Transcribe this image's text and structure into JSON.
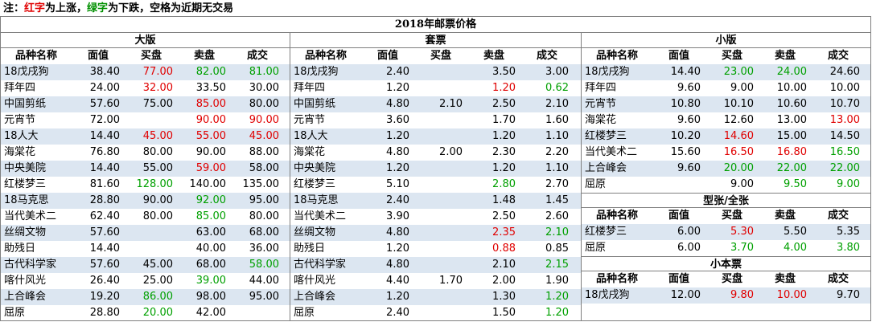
{
  "note": {
    "prefix": "注：",
    "red_text": "红字",
    "mid": "为上涨，",
    "green_text": "绿字",
    "suffix": "为下跌，空格为近期无交易"
  },
  "title": "2018年邮票价格",
  "headers": [
    "品种名称",
    "面值",
    "买盘",
    "卖盘",
    "成交"
  ],
  "sections": {
    "daban": {
      "title": "大版",
      "rows": [
        [
          [
            "18戊戌狗",
            ""
          ],
          [
            "38.40",
            ""
          ],
          [
            "77.00",
            "red"
          ],
          [
            "82.00",
            "green"
          ],
          [
            "81.00",
            "green"
          ]
        ],
        [
          [
            "拜年四",
            ""
          ],
          [
            "24.00",
            ""
          ],
          [
            "32.00",
            "red"
          ],
          [
            "33.50",
            ""
          ],
          [
            "30.00",
            ""
          ]
        ],
        [
          [
            "中国剪纸",
            ""
          ],
          [
            "57.60",
            ""
          ],
          [
            "75.00",
            ""
          ],
          [
            "85.00",
            "red"
          ],
          [
            "80.00",
            ""
          ]
        ],
        [
          [
            "元宵节",
            ""
          ],
          [
            "72.00",
            ""
          ],
          [
            "",
            ""
          ],
          [
            "90.00",
            "red"
          ],
          [
            "90.00",
            "red"
          ]
        ],
        [
          [
            "18人大",
            ""
          ],
          [
            "14.40",
            ""
          ],
          [
            "45.00",
            "red"
          ],
          [
            "55.00",
            "red"
          ],
          [
            "45.00",
            "red"
          ]
        ],
        [
          [
            "海棠花",
            ""
          ],
          [
            "76.80",
            ""
          ],
          [
            "80.00",
            ""
          ],
          [
            "90.00",
            ""
          ],
          [
            "88.00",
            ""
          ]
        ],
        [
          [
            "中央美院",
            ""
          ],
          [
            "14.40",
            ""
          ],
          [
            "55.00",
            ""
          ],
          [
            "59.00",
            "red"
          ],
          [
            "58.00",
            ""
          ]
        ],
        [
          [
            "红楼梦三",
            ""
          ],
          [
            "81.60",
            ""
          ],
          [
            "128.00",
            "green"
          ],
          [
            "140.00",
            ""
          ],
          [
            "135.00",
            ""
          ]
        ],
        [
          [
            "18马克思",
            ""
          ],
          [
            "28.80",
            ""
          ],
          [
            "90.00",
            ""
          ],
          [
            "92.00",
            "green"
          ],
          [
            "95.00",
            ""
          ]
        ],
        [
          [
            "当代美术二",
            ""
          ],
          [
            "62.40",
            ""
          ],
          [
            "80.00",
            ""
          ],
          [
            "85.00",
            "green"
          ],
          [
            "80.00",
            ""
          ]
        ],
        [
          [
            "丝绸文物",
            ""
          ],
          [
            "57.60",
            ""
          ],
          [
            "",
            ""
          ],
          [
            "63.00",
            ""
          ],
          [
            "68.00",
            ""
          ]
        ],
        [
          [
            "助残日",
            ""
          ],
          [
            "14.40",
            ""
          ],
          [
            "",
            ""
          ],
          [
            "40.00",
            ""
          ],
          [
            "36.00",
            ""
          ]
        ],
        [
          [
            "古代科学家",
            ""
          ],
          [
            "57.60",
            ""
          ],
          [
            "45.00",
            ""
          ],
          [
            "68.00",
            ""
          ],
          [
            "58.00",
            "green"
          ]
        ],
        [
          [
            "喀什风光",
            ""
          ],
          [
            "26.40",
            ""
          ],
          [
            "25.00",
            ""
          ],
          [
            "39.00",
            "green"
          ],
          [
            "44.00",
            ""
          ]
        ],
        [
          [
            "上合峰会",
            ""
          ],
          [
            "19.20",
            ""
          ],
          [
            "86.00",
            "green"
          ],
          [
            "98.00",
            ""
          ],
          [
            "95.00",
            ""
          ]
        ],
        [
          [
            "屈原",
            ""
          ],
          [
            "28.80",
            ""
          ],
          [
            "20.00",
            "green"
          ],
          [
            "42.00",
            ""
          ],
          [
            "",
            ""
          ]
        ]
      ]
    },
    "taopiao": {
      "title": "套票",
      "rows": [
        [
          [
            "18戊戌狗",
            ""
          ],
          [
            "2.40",
            ""
          ],
          [
            "",
            ""
          ],
          [
            "3.50",
            ""
          ],
          [
            "3.00",
            ""
          ]
        ],
        [
          [
            "拜年四",
            ""
          ],
          [
            "1.20",
            ""
          ],
          [
            "",
            ""
          ],
          [
            "1.20",
            "red"
          ],
          [
            "0.62",
            "green"
          ]
        ],
        [
          [
            "中国剪纸",
            ""
          ],
          [
            "4.80",
            ""
          ],
          [
            "2.10",
            ""
          ],
          [
            "2.50",
            ""
          ],
          [
            "2.10",
            ""
          ]
        ],
        [
          [
            "元宵节",
            ""
          ],
          [
            "3.60",
            ""
          ],
          [
            "",
            ""
          ],
          [
            "1.70",
            ""
          ],
          [
            "1.60",
            ""
          ]
        ],
        [
          [
            "18人大",
            ""
          ],
          [
            "1.20",
            ""
          ],
          [
            "",
            ""
          ],
          [
            "1.20",
            ""
          ],
          [
            "1.10",
            ""
          ]
        ],
        [
          [
            "海棠花",
            ""
          ],
          [
            "4.80",
            ""
          ],
          [
            "2.00",
            ""
          ],
          [
            "2.30",
            ""
          ],
          [
            "2.20",
            ""
          ]
        ],
        [
          [
            "中央美院",
            ""
          ],
          [
            "1.20",
            ""
          ],
          [
            "",
            ""
          ],
          [
            "1.20",
            ""
          ],
          [
            "1.10",
            ""
          ]
        ],
        [
          [
            "红楼梦三",
            ""
          ],
          [
            "5.10",
            ""
          ],
          [
            "",
            ""
          ],
          [
            "2.80",
            "green"
          ],
          [
            "2.70",
            ""
          ]
        ],
        [
          [
            "18马克思",
            ""
          ],
          [
            "2.40",
            ""
          ],
          [
            "",
            ""
          ],
          [
            "1.48",
            ""
          ],
          [
            "1.45",
            ""
          ]
        ],
        [
          [
            "当代美术二",
            ""
          ],
          [
            "3.90",
            ""
          ],
          [
            "",
            ""
          ],
          [
            "2.50",
            ""
          ],
          [
            "2.60",
            ""
          ]
        ],
        [
          [
            "丝绸文物",
            ""
          ],
          [
            "4.80",
            ""
          ],
          [
            "",
            ""
          ],
          [
            "2.35",
            "red"
          ],
          [
            "2.10",
            "green"
          ]
        ],
        [
          [
            "助残日",
            ""
          ],
          [
            "1.20",
            ""
          ],
          [
            "",
            ""
          ],
          [
            "0.88",
            "red"
          ],
          [
            "0.85",
            ""
          ]
        ],
        [
          [
            "古代科学家",
            ""
          ],
          [
            "4.80",
            ""
          ],
          [
            "",
            ""
          ],
          [
            "2.10",
            ""
          ],
          [
            "2.15",
            "green"
          ]
        ],
        [
          [
            "喀什风光",
            ""
          ],
          [
            "4.40",
            ""
          ],
          [
            "1.70",
            ""
          ],
          [
            "2.00",
            ""
          ],
          [
            "1.90",
            ""
          ]
        ],
        [
          [
            "上合峰会",
            ""
          ],
          [
            "1.20",
            ""
          ],
          [
            "",
            ""
          ],
          [
            "1.30",
            ""
          ],
          [
            "1.20",
            "green"
          ]
        ],
        [
          [
            "屈原",
            ""
          ],
          [
            "2.40",
            ""
          ],
          [
            "",
            ""
          ],
          [
            "1.50",
            ""
          ],
          [
            "1.20",
            "green"
          ]
        ]
      ]
    },
    "xiaoban": {
      "title": "小版",
      "rows": [
        [
          [
            "18戊戌狗",
            ""
          ],
          [
            "14.40",
            ""
          ],
          [
            "23.00",
            "green"
          ],
          [
            "24.00",
            "green"
          ],
          [
            "24.60",
            ""
          ]
        ],
        [
          [
            "拜年四",
            ""
          ],
          [
            "9.60",
            ""
          ],
          [
            "9.00",
            ""
          ],
          [
            "10.00",
            ""
          ],
          [
            "10.00",
            ""
          ]
        ],
        [
          [
            "元宵节",
            ""
          ],
          [
            "10.80",
            ""
          ],
          [
            "10.10",
            ""
          ],
          [
            "10.60",
            ""
          ],
          [
            "10.70",
            ""
          ]
        ],
        [
          [
            "海棠花",
            ""
          ],
          [
            "9.60",
            ""
          ],
          [
            "12.60",
            ""
          ],
          [
            "13.00",
            ""
          ],
          [
            "13.00",
            "red"
          ]
        ],
        [
          [
            "红楼梦三",
            ""
          ],
          [
            "10.20",
            ""
          ],
          [
            "14.60",
            "red"
          ],
          [
            "15.00",
            ""
          ],
          [
            "14.50",
            ""
          ]
        ],
        [
          [
            "当代美术二",
            ""
          ],
          [
            "15.60",
            ""
          ],
          [
            "16.50",
            "red"
          ],
          [
            "16.80",
            "red"
          ],
          [
            "16.50",
            "green"
          ]
        ],
        [
          [
            "上合峰会",
            ""
          ],
          [
            "9.60",
            ""
          ],
          [
            "20.00",
            "green"
          ],
          [
            "22.00",
            "green"
          ],
          [
            "22.00",
            "green"
          ]
        ],
        [
          [
            "屈原",
            ""
          ],
          [
            "",
            ""
          ],
          [
            "9.00",
            ""
          ],
          [
            "9.50",
            "green"
          ],
          [
            "9.00",
            "green"
          ]
        ]
      ]
    },
    "xingzhang": {
      "title": "型张/全张",
      "rows": [
        [
          [
            "红楼梦三",
            ""
          ],
          [
            "6.00",
            ""
          ],
          [
            "5.30",
            "red"
          ],
          [
            "5.50",
            ""
          ],
          [
            "5.35",
            ""
          ]
        ],
        [
          [
            "屈原",
            ""
          ],
          [
            "6.00",
            ""
          ],
          [
            "3.70",
            "green"
          ],
          [
            "4.00",
            "green"
          ],
          [
            "3.80",
            "green"
          ]
        ]
      ]
    },
    "xiaobenpiao": {
      "title": "小本票",
      "rows": [
        [
          [
            "18戊戌狗",
            ""
          ],
          [
            "12.00",
            ""
          ],
          [
            "9.80",
            "red"
          ],
          [
            "10.00",
            "red"
          ],
          [
            "9.70",
            ""
          ]
        ]
      ]
    }
  }
}
